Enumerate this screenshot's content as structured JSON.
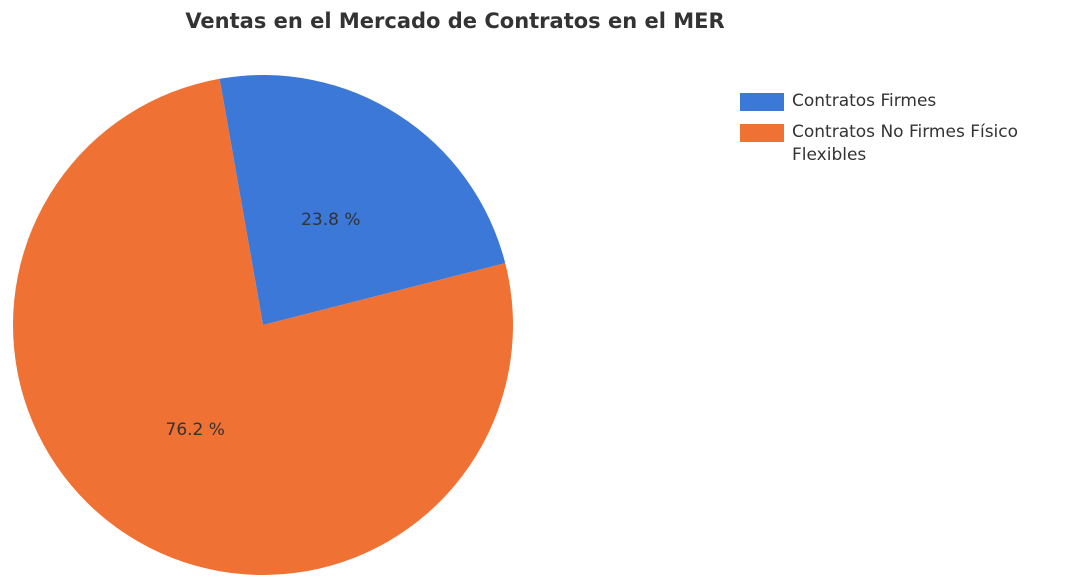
{
  "chart_data": {
    "type": "pie",
    "title": "Ventas en el Mercado de Contratos en el MER",
    "categories": [
      "Contratos Firmes",
      "Contratos No Firmes Físico Flexibles"
    ],
    "values": [
      23.8,
      76.2
    ],
    "value_labels": [
      "23.8 %",
      "76.2 %"
    ],
    "colors": [
      "#3b78d8",
      "#f07134"
    ],
    "legend": "right"
  }
}
